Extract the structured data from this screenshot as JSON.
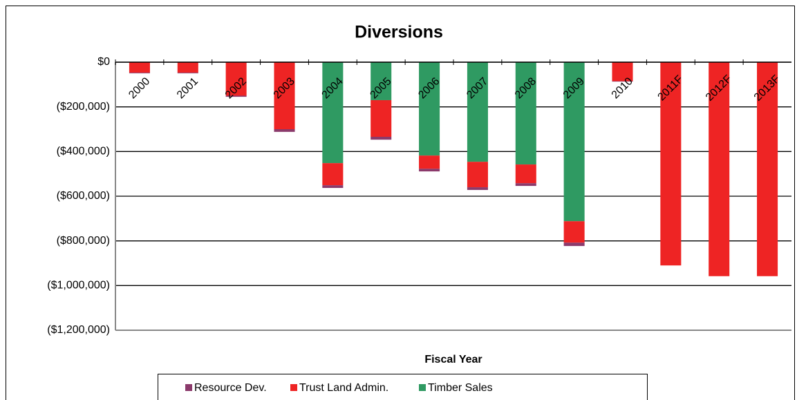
{
  "chart_data": {
    "type": "bar",
    "stacked": true,
    "title": "Diversions",
    "x_label": "Fiscal Year",
    "categories": [
      "2000",
      "2001",
      "2002",
      "2003",
      "2004",
      "2005",
      "2006",
      "2007",
      "2008",
      "2009",
      "2010",
      "2011F",
      "2012F",
      "2013F"
    ],
    "series": [
      {
        "name": "Resource Dev.",
        "color": "#8b3a6b",
        "values": [
          -3000,
          -3000,
          -5000,
          -12000,
          -12000,
          -13000,
          -12000,
          -12000,
          -12000,
          -15000,
          -2000,
          0,
          0,
          0
        ]
      },
      {
        "name": "Trust Land Admin.",
        "color": "#ee2424",
        "values": [
          -47000,
          -47000,
          -150000,
          -300000,
          -99000,
          -164000,
          -59000,
          -114000,
          -84000,
          -96000,
          -85000,
          -910000,
          -958000,
          -958000
        ]
      },
      {
        "name": "Timber Sales",
        "color": "#2f9a62",
        "values": [
          0,
          0,
          0,
          0,
          -452000,
          -170000,
          -418000,
          -446000,
          -458000,
          -712000,
          0,
          0,
          0,
          0
        ]
      }
    ],
    "ylim": [
      -1200000,
      0
    ],
    "yticks": [
      {
        "value": 0,
        "label": "$0"
      },
      {
        "value": -200000,
        "label": "($200,000)"
      },
      {
        "value": -400000,
        "label": "($400,000)"
      },
      {
        "value": -600000,
        "label": "($600,000)"
      },
      {
        "value": -800000,
        "label": "($800,000)"
      },
      {
        "value": -1000000,
        "label": "($1,000,000)"
      },
      {
        "value": -1200000,
        "label": "($1,200,000)"
      }
    ],
    "grid": true,
    "legend": "bottom"
  }
}
